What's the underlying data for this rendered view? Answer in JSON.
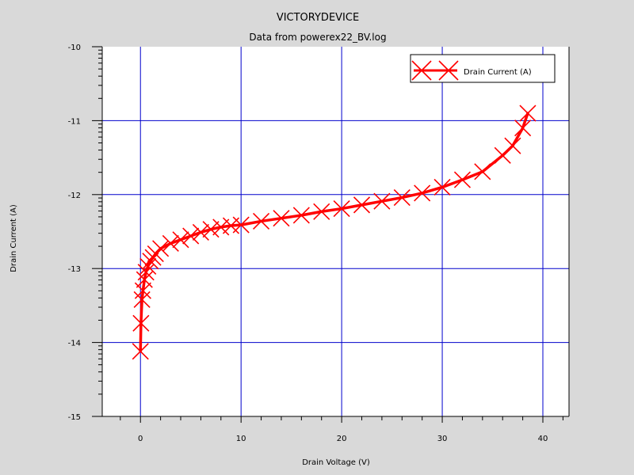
{
  "chart_data": {
    "type": "line",
    "title": "VICTORYDEVICE",
    "subtitle": "Data from powerex22_BV.log",
    "xlabel": "Drain Voltage (V)",
    "ylabel": "Drain Current (A)",
    "xlim": [
      -3.8,
      42.6
    ],
    "ylim": [
      -15,
      -10
    ],
    "xticks": [
      0,
      10,
      20,
      30,
      40
    ],
    "yticks": [
      -15,
      -14,
      -13,
      -12,
      -11,
      -10
    ],
    "ytick_labels": [
      "-15",
      "-14",
      "-13",
      "-12",
      "-11",
      "-10"
    ],
    "grid": true,
    "legend_position": "top-right",
    "colors": {
      "series": "#ff0000",
      "grid": "#0000cc",
      "background": "#d9d9d9",
      "plot": "#ffffff"
    },
    "series": [
      {
        "name": "Drain Current (A)",
        "marker": "x",
        "x": [
          0,
          0.05,
          0.15,
          0.25,
          0.4,
          0.55,
          0.75,
          1.0,
          1.25,
          1.5,
          2.0,
          3.0,
          4.0,
          5.0,
          6.0,
          7.0,
          8.0,
          9.0,
          10.0,
          12.0,
          14.0,
          16.0,
          18.0,
          20.0,
          22.0,
          24.0,
          26.0,
          28.0,
          30.0,
          32.0,
          34.0,
          36.0,
          37.0,
          38.0,
          38.5
        ],
        "y": [
          -14.12,
          -13.74,
          -13.42,
          -13.3,
          -13.15,
          -13.05,
          -12.97,
          -12.9,
          -12.85,
          -12.8,
          -12.73,
          -12.66,
          -12.61,
          -12.56,
          -12.51,
          -12.47,
          -12.44,
          -12.42,
          -12.41,
          -12.36,
          -12.32,
          -12.28,
          -12.23,
          -12.19,
          -12.14,
          -12.09,
          -12.04,
          -11.98,
          -11.9,
          -11.8,
          -11.69,
          -11.47,
          -11.34,
          -11.1,
          -10.9
        ]
      }
    ]
  }
}
